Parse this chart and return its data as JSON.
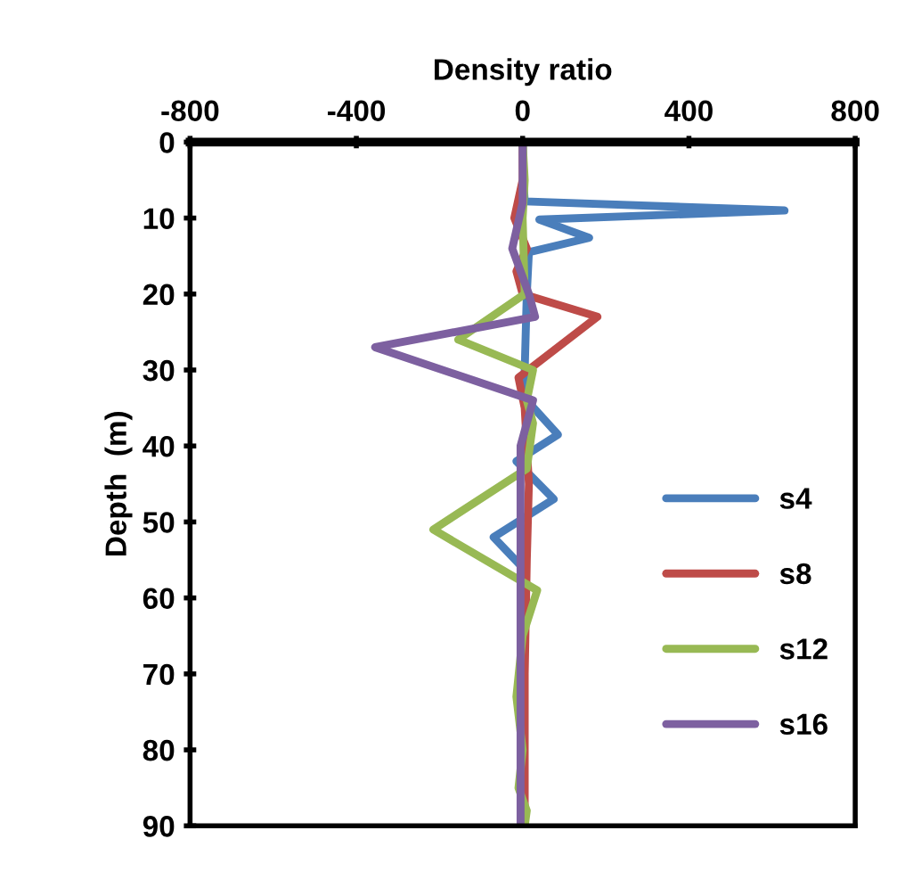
{
  "chart_data": {
    "type": "line",
    "xlabel": "Density ratio",
    "ylabel": "Depth  (m)",
    "xlim": [
      -800,
      800
    ],
    "xticks": [
      -800,
      -400,
      0,
      400,
      800
    ],
    "ylim": [
      90,
      0
    ],
    "yticks": [
      0,
      10,
      20,
      30,
      40,
      50,
      60,
      70,
      80,
      90
    ],
    "grid": false,
    "legend": "right",
    "marker": "none",
    "line_style": "solid",
    "series": [
      {
        "name": "s4",
        "color": "#4a7ebb",
        "x": [
          0,
          2,
          5,
          630,
          40,
          160,
          15,
          10,
          5,
          10,
          85,
          -15,
          75,
          -70,
          0,
          0,
          0
        ],
        "values": [
          0,
          5,
          7.8,
          9,
          10.2,
          12.6,
          14.5,
          20,
          30,
          34,
          38.5,
          42,
          47,
          52,
          56,
          70,
          90
        ]
      },
      {
        "name": "s8",
        "color": "#be4b48",
        "x": [
          0,
          0,
          -20,
          10,
          -15,
          0,
          180,
          -10,
          5,
          15,
          10,
          5,
          5
        ],
        "values": [
          0,
          5,
          10,
          14,
          17,
          20,
          23,
          31,
          35,
          45,
          55,
          70,
          90
        ]
      },
      {
        "name": "s12",
        "color": "#98b954",
        "x": [
          0,
          5,
          0,
          5,
          -155,
          25,
          10,
          25,
          10,
          -215,
          35,
          0,
          -15,
          0,
          -10,
          10,
          5
        ],
        "values": [
          0,
          5,
          10,
          20,
          26,
          30,
          34,
          37,
          43,
          51,
          59,
          65,
          73,
          80,
          85,
          88,
          90
        ]
      },
      {
        "name": "s16",
        "color": "#7d60a0",
        "x": [
          0,
          0,
          -25,
          15,
          30,
          -355,
          25,
          -5,
          -5,
          -5
        ],
        "values": [
          0,
          8,
          14,
          20,
          23,
          27,
          34,
          40,
          60,
          90
        ]
      }
    ]
  }
}
